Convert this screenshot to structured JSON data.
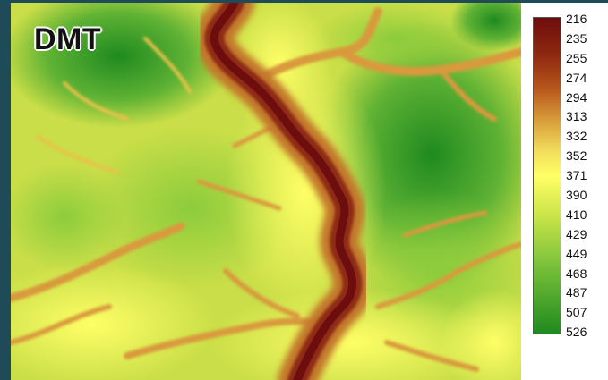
{
  "map": {
    "title": "DMT",
    "colors": {
      "low": "#6e0d0d",
      "mid_low": "#b5541c",
      "mid": "#ffff66",
      "mid_high": "#7cc23a",
      "high": "#1f8a1f"
    }
  },
  "legend": {
    "labels": [
      "216",
      "235",
      "255",
      "274",
      "294",
      "313",
      "332",
      "352",
      "371",
      "390",
      "410",
      "429",
      "449",
      "468",
      "487",
      "507",
      "526"
    ]
  }
}
